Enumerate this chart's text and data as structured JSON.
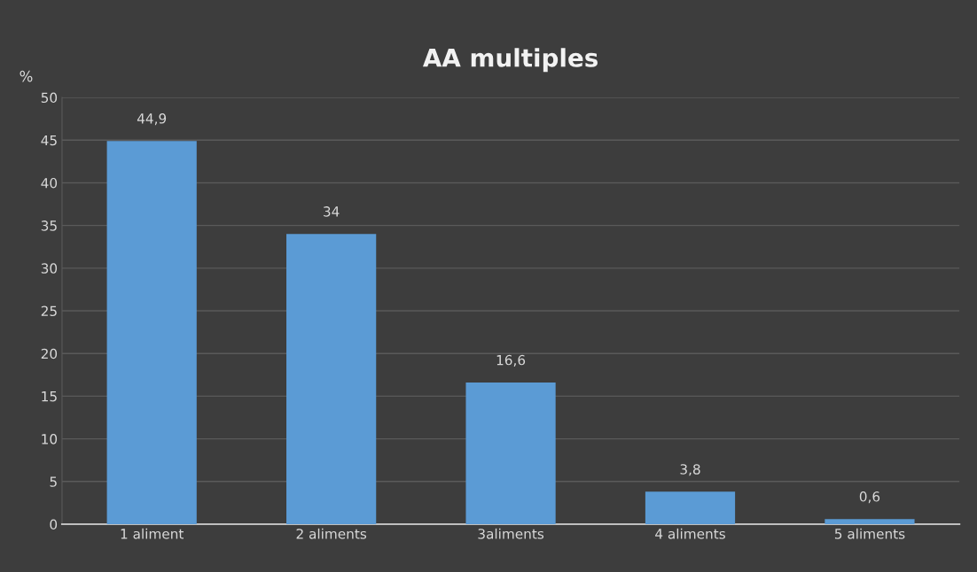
{
  "chart_data": {
    "type": "bar",
    "title": "AA multiples",
    "ylabel": "%",
    "categories": [
      "1 aliment",
      "2 aliments",
      "3aliments",
      "4 aliments",
      "5 aliments"
    ],
    "values": [
      44.9,
      34,
      16.6,
      3.8,
      0.6
    ],
    "value_labels": [
      "44,9",
      "34",
      "16,6",
      "3,8",
      "0,6"
    ],
    "color": "#5b9bd5",
    "ylim": [
      0,
      50
    ],
    "yticks": [
      0,
      5,
      10,
      15,
      20,
      25,
      30,
      35,
      40,
      45,
      50
    ],
    "grid": "y"
  }
}
